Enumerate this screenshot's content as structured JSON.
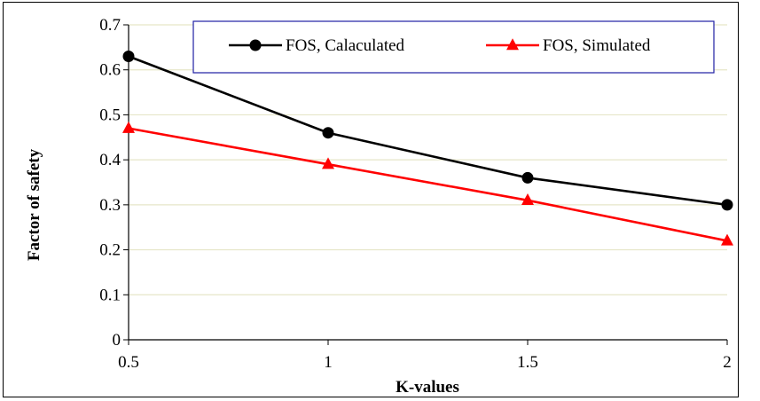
{
  "chart_data": {
    "type": "line",
    "xlabel": "K-values",
    "ylabel": "Factor of safety",
    "x": [
      0.5,
      1,
      1.5,
      2
    ],
    "x_tick_labels": [
      "0.5",
      "1",
      "1.5",
      "2"
    ],
    "xlim": [
      0.5,
      2
    ],
    "ylim": [
      0,
      0.7
    ],
    "y_ticks": [
      0,
      0.1,
      0.2,
      0.3,
      0.4,
      0.5,
      0.6,
      0.7
    ],
    "y_tick_labels": [
      "0",
      "0.1",
      "0.2",
      "0.3",
      "0.4",
      "0.5",
      "0.6",
      "0.7"
    ],
    "grid": "horizontal",
    "legend_position": "top-right",
    "series": [
      {
        "name": "FOS, Calaculated",
        "values": [
          0.63,
          0.46,
          0.36,
          0.3
        ],
        "color": "#000000",
        "marker": "circle"
      },
      {
        "name": "FOS, Simulated",
        "values": [
          0.47,
          0.39,
          0.31,
          0.22
        ],
        "color": "#ff0000",
        "marker": "triangle"
      }
    ],
    "gridline_color": "#e6e6c8",
    "legend_border_color": "#1f1fa3"
  }
}
